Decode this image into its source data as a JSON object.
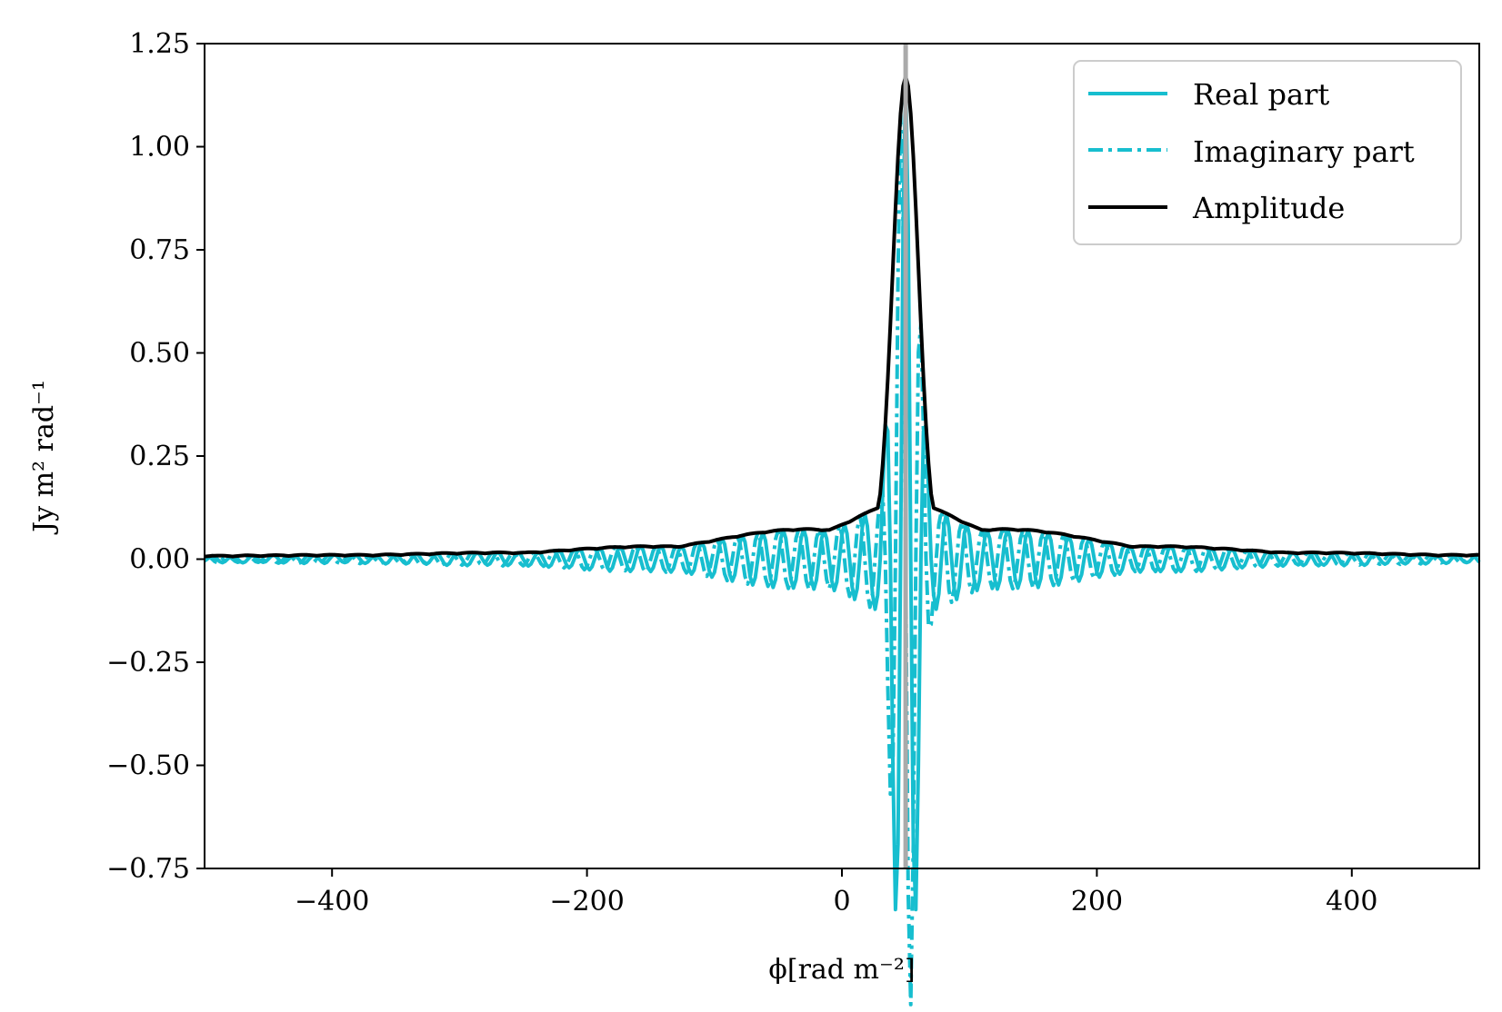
{
  "chart_data": {
    "type": "line",
    "title": "",
    "xlabel": "ϕ[rad m⁻²]",
    "ylabel": "Jy m² rad⁻¹",
    "xlim": [
      -500,
      500
    ],
    "ylim": [
      -0.75,
      1.25
    ],
    "xticks": [
      -400,
      -200,
      0,
      200,
      400
    ],
    "xtick_labels": [
      "−400",
      "−200",
      "0",
      "200",
      "400"
    ],
    "yticks": [
      -0.75,
      -0.5,
      -0.25,
      0.0,
      0.25,
      0.5,
      0.75,
      1.0,
      1.25
    ],
    "ytick_labels": [
      "−0.75",
      "−0.50",
      "−0.25",
      "0.00",
      "0.25",
      "0.50",
      "0.75",
      "1.00",
      "1.25"
    ],
    "grid": false,
    "legend_position": "top-right",
    "vline": {
      "x": 50,
      "color": "#aaaaaa"
    },
    "series": [
      {
        "name": "Real part",
        "style": "solid",
        "color": "#17becf",
        "peak_x": 50,
        "peak_value": 1.17,
        "main_lobe_width": 10,
        "sidelobe_period": 16,
        "phase": 0,
        "ripple_floor": 0.005
      },
      {
        "name": "Imaginary part",
        "style": "dashdot",
        "color": "#17becf",
        "peak_x": 50,
        "peak_value": 1.17,
        "main_lobe_width": 10,
        "sidelobe_period": 16,
        "phase": 1.5708,
        "ripple_floor": 0.005
      },
      {
        "name": "Amplitude",
        "style": "solid",
        "color": "#000000",
        "peak_x": 50,
        "peak_value": 1.17,
        "main_lobe_width": 10,
        "sidelobe_period": 16,
        "phase": null,
        "ripple_floor": 0.005
      }
    ]
  }
}
